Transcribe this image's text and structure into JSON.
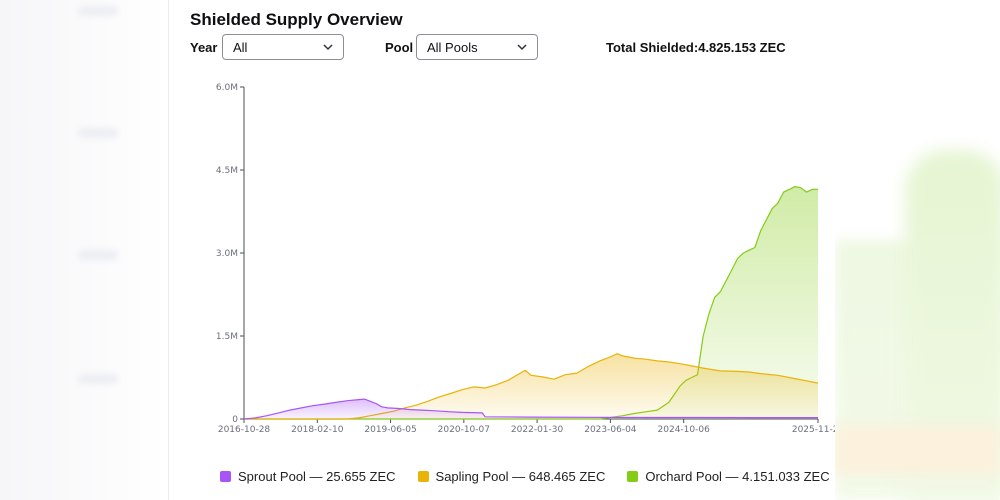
{
  "header": {
    "title": "Shielded Supply Overview"
  },
  "filters": {
    "year_label": "Year",
    "year_value": "All",
    "pool_label": "Pool",
    "pool_value": "All Pools",
    "total_label": "Total Shielded:",
    "total_value": "4.825.153 ZEC"
  },
  "colors": {
    "sprout": "#a855f7",
    "sapling": "#eab308",
    "orchard": "#84cc16",
    "axis": "#4b4f5c"
  },
  "chart_data": {
    "type": "area",
    "title": "",
    "xlabel": "",
    "ylabel": "",
    "ylim": [
      0,
      6000000
    ],
    "y_ticks": [
      {
        "value": 0,
        "label": "0"
      },
      {
        "value": 1500000,
        "label": "1.5M"
      },
      {
        "value": 3000000,
        "label": "3.0M"
      },
      {
        "value": 4500000,
        "label": "4.5M"
      },
      {
        "value": 6000000,
        "label": "6.0M"
      }
    ],
    "x_ticks": [
      {
        "pos": 0.0,
        "label": "2016-10-28"
      },
      {
        "pos": 0.1277,
        "label": "2018-02-10"
      },
      {
        "pos": 0.2553,
        "label": "2019-06-05"
      },
      {
        "pos": 0.383,
        "label": "2020-10-07"
      },
      {
        "pos": 0.5106,
        "label": "2022-01-30"
      },
      {
        "pos": 0.6383,
        "label": "2023-06-04"
      },
      {
        "pos": 0.766,
        "label": "2024-10-06"
      },
      {
        "pos": 1.0,
        "label": "2025-11-20"
      }
    ],
    "grid": false,
    "legend_position": "bottom",
    "series": [
      {
        "name": "Sprout Pool",
        "legend": "Sprout Pool — 25.655 ZEC",
        "key": "sprout",
        "points": [
          [
            0,
            0
          ],
          [
            0.02,
            20000
          ],
          [
            0.04,
            60000
          ],
          [
            0.06,
            110000
          ],
          [
            0.08,
            160000
          ],
          [
            0.1,
            200000
          ],
          [
            0.12,
            240000
          ],
          [
            0.14,
            270000
          ],
          [
            0.16,
            300000
          ],
          [
            0.18,
            330000
          ],
          [
            0.2,
            350000
          ],
          [
            0.21,
            360000
          ],
          [
            0.22,
            320000
          ],
          [
            0.23,
            280000
          ],
          [
            0.24,
            220000
          ],
          [
            0.25,
            200000
          ],
          [
            0.27,
            190000
          ],
          [
            0.29,
            170000
          ],
          [
            0.31,
            160000
          ],
          [
            0.33,
            150000
          ],
          [
            0.36,
            130000
          ],
          [
            0.38,
            120000
          ],
          [
            0.415,
            110000
          ],
          [
            0.42,
            40000
          ],
          [
            0.5,
            35000
          ],
          [
            0.6,
            30000
          ],
          [
            0.7,
            28000
          ],
          [
            0.8,
            27000
          ],
          [
            0.9,
            26000
          ],
          [
            1,
            25655
          ]
        ]
      },
      {
        "name": "Sapling Pool",
        "legend": "Sapling Pool — 648.465 ZEC",
        "key": "sapling",
        "points": [
          [
            0,
            0
          ],
          [
            0.18,
            0
          ],
          [
            0.2,
            20000
          ],
          [
            0.22,
            60000
          ],
          [
            0.24,
            100000
          ],
          [
            0.26,
            140000
          ],
          [
            0.28,
            200000
          ],
          [
            0.3,
            250000
          ],
          [
            0.32,
            320000
          ],
          [
            0.34,
            400000
          ],
          [
            0.36,
            460000
          ],
          [
            0.38,
            530000
          ],
          [
            0.4,
            580000
          ],
          [
            0.42,
            560000
          ],
          [
            0.44,
            620000
          ],
          [
            0.46,
            700000
          ],
          [
            0.48,
            820000
          ],
          [
            0.49,
            880000
          ],
          [
            0.5,
            790000
          ],
          [
            0.52,
            760000
          ],
          [
            0.54,
            720000
          ],
          [
            0.56,
            800000
          ],
          [
            0.58,
            830000
          ],
          [
            0.6,
            950000
          ],
          [
            0.62,
            1050000
          ],
          [
            0.63,
            1090000
          ],
          [
            0.64,
            1130000
          ],
          [
            0.65,
            1180000
          ],
          [
            0.66,
            1140000
          ],
          [
            0.68,
            1100000
          ],
          [
            0.7,
            1080000
          ],
          [
            0.72,
            1050000
          ],
          [
            0.74,
            1030000
          ],
          [
            0.76,
            1000000
          ],
          [
            0.78,
            960000
          ],
          [
            0.8,
            920000
          ],
          [
            0.83,
            870000
          ],
          [
            0.86,
            860000
          ],
          [
            0.88,
            850000
          ],
          [
            0.9,
            820000
          ],
          [
            0.93,
            790000
          ],
          [
            0.96,
            730000
          ],
          [
            0.98,
            690000
          ],
          [
            1,
            648465
          ]
        ]
      },
      {
        "name": "Orchard Pool",
        "legend": "Orchard Pool — 4.151.033 ZEC",
        "key": "orchard",
        "points": [
          [
            0,
            0
          ],
          [
            0.62,
            0
          ],
          [
            0.64,
            30000
          ],
          [
            0.66,
            60000
          ],
          [
            0.68,
            100000
          ],
          [
            0.7,
            130000
          ],
          [
            0.72,
            160000
          ],
          [
            0.74,
            300000
          ],
          [
            0.75,
            450000
          ],
          [
            0.76,
            600000
          ],
          [
            0.77,
            700000
          ],
          [
            0.78,
            750000
          ],
          [
            0.79,
            800000
          ],
          [
            0.8,
            1500000
          ],
          [
            0.81,
            1900000
          ],
          [
            0.82,
            2200000
          ],
          [
            0.83,
            2300000
          ],
          [
            0.84,
            2500000
          ],
          [
            0.85,
            2700000
          ],
          [
            0.86,
            2900000
          ],
          [
            0.87,
            3000000
          ],
          [
            0.88,
            3050000
          ],
          [
            0.89,
            3100000
          ],
          [
            0.9,
            3400000
          ],
          [
            0.92,
            3800000
          ],
          [
            0.93,
            3900000
          ],
          [
            0.94,
            4100000
          ],
          [
            0.95,
            4150000
          ],
          [
            0.96,
            4200000
          ],
          [
            0.97,
            4180000
          ],
          [
            0.98,
            4100000
          ],
          [
            0.99,
            4150000
          ],
          [
            1,
            4151033
          ]
        ]
      }
    ]
  }
}
